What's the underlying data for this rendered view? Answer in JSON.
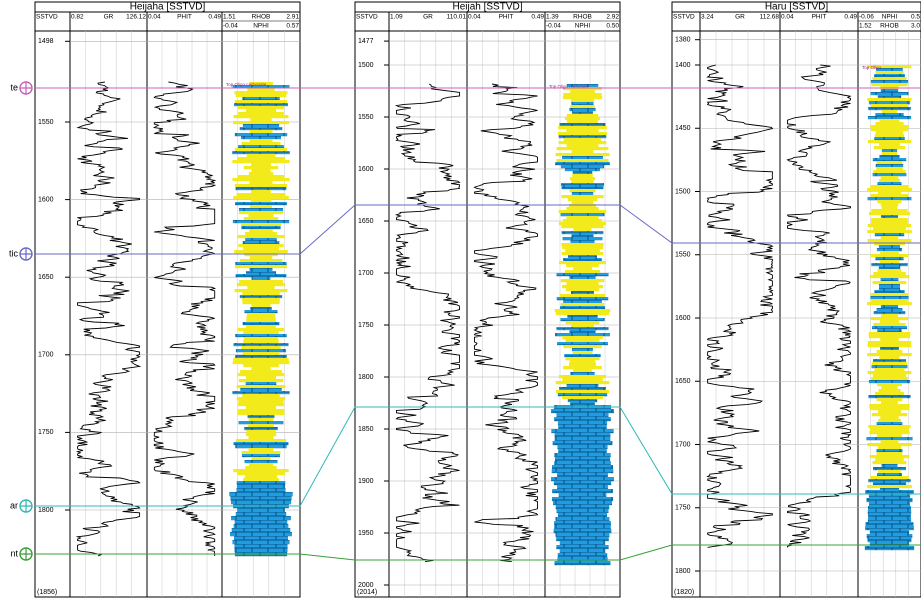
{
  "wells": [
    {
      "title": "Heijaha [SSTVD]",
      "depth_header": "SSTVD",
      "track_headers": [
        [
          "0.82",
          "GR",
          "126.12"
        ],
        [
          "0.04",
          "PHIT",
          "0.49"
        ],
        [
          "1.51",
          "RHOB",
          "2.91"
        ]
      ],
      "extra_header": [
        "-0.04",
        "NPHI",
        "0.57"
      ],
      "depth_ticks": [
        1498,
        1550,
        1600,
        1650,
        1700,
        1750,
        1800
      ],
      "bottom_label": "(1856)",
      "top_label": "Top Oligo carbonate"
    },
    {
      "title": "Heijah [SSTVD]",
      "depth_header": "SSTVD",
      "track_headers": [
        [
          "1.09",
          "GR",
          "110.01"
        ],
        [
          "0.04",
          "PHIT",
          "0.49"
        ],
        [
          "1.39",
          "RHOB",
          "2.92"
        ]
      ],
      "extra_header": [
        "-0.04",
        "NPHI",
        "0.50"
      ],
      "depth_ticks": [
        1477,
        1500,
        1550,
        1600,
        1650,
        1700,
        1750,
        1800,
        1850,
        1900,
        1950,
        2000
      ],
      "bottom_label": "(2014)",
      "top_label": "Top Oligo carbonate"
    },
    {
      "title": "Haru [SSTVD]",
      "depth_header": "SSTVD",
      "track_headers": [
        [
          "3.24",
          "GR",
          "112.68"
        ],
        [
          "0.04",
          "PHIT",
          "0.49"
        ],
        [
          "-0.06",
          "NPHI",
          "0.5"
        ]
      ],
      "extra_header": [
        "1.52",
        "RHOB",
        "3.0"
      ],
      "depth_ticks": [
        1380,
        1400,
        1450,
        1500,
        1550,
        1600,
        1650,
        1700,
        1750,
        1800
      ],
      "bottom_label": "(1820)",
      "top_label": "Top Oligo"
    }
  ],
  "markers": [
    {
      "label": "te"
    },
    {
      "label": "tic"
    },
    {
      "label": "ar"
    },
    {
      "label": "nt"
    }
  ]
}
